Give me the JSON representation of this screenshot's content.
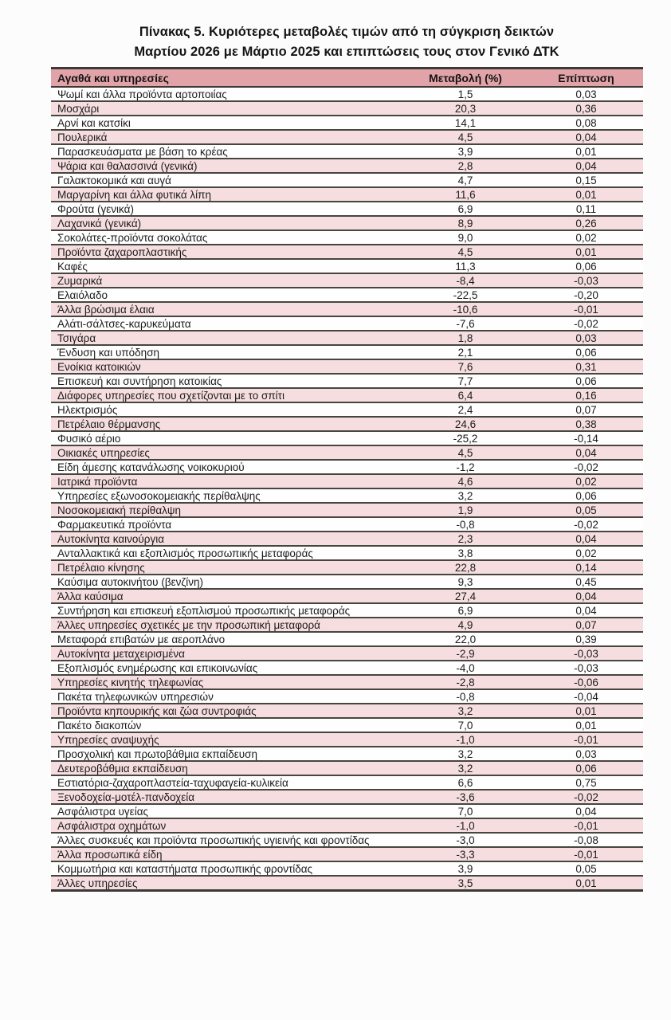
{
  "title": {
    "line1": "Πίνακας  5. Κυριότερες μεταβολές τιμών από τη σύγκριση δεικτών",
    "line2": "Μαρτίου 2026 με Μάρτιο 2025 και επιπτώσεις τους στον Γενικό ΔΤΚ"
  },
  "colors": {
    "header_bg": "#e1a3a8",
    "row_alt_bg": "#f6dee0",
    "border": "#474540"
  },
  "table": {
    "columns": [
      "Αγαθά και υπηρεσίες",
      "Μεταβολή  (%)",
      "Επίπτωση"
    ],
    "rows": [
      {
        "label": "Ψωμί και άλλα προϊόντα αρτοποιίας",
        "change": "1,5",
        "impact": "0,03"
      },
      {
        "label": "Μοσχάρι",
        "change": "20,3",
        "impact": "0,36"
      },
      {
        "label": "Αρνί και κατσίκι",
        "change": "14,1",
        "impact": "0,08"
      },
      {
        "label": "Πουλερικά",
        "change": "4,5",
        "impact": "0,04"
      },
      {
        "label": "Παρασκευάσματα με βάση το κρέας",
        "change": "3,9",
        "impact": "0,01"
      },
      {
        "label": "Ψάρια και θαλασσινά (γενικά)",
        "change": "2,8",
        "impact": "0,04"
      },
      {
        "label": "Γαλακτοκομικά και αυγά",
        "change": "4,7",
        "impact": "0,15"
      },
      {
        "label": "Μαργαρίνη και άλλα φυτικά λίπη",
        "change": "11,6",
        "impact": "0,01"
      },
      {
        "label": "Φρούτα (γενικά)",
        "change": "6,9",
        "impact": "0,11"
      },
      {
        "label": "Λαχανικά (γενικά)",
        "change": "8,9",
        "impact": "0,26"
      },
      {
        "label": "Σοκολάτες-προϊόντα σοκολάτας",
        "change": "9,0",
        "impact": "0,02"
      },
      {
        "label": "Προϊόντα ζαχαροπλαστικής",
        "change": "4,5",
        "impact": "0,01"
      },
      {
        "label": "Καφές",
        "change": "11,3",
        "impact": "0,06"
      },
      {
        "label": "Ζυμαρικά",
        "change": "-8,4",
        "impact": "-0,03"
      },
      {
        "label": "Ελαιόλαδο",
        "change": "-22,5",
        "impact": "-0,20"
      },
      {
        "label": "Άλλα βρώσιμα έλαια",
        "change": "-10,6",
        "impact": "-0,01"
      },
      {
        "label": "Αλάτι-σάλτσες-καρυκεύματα",
        "change": "-7,6",
        "impact": "-0,02"
      },
      {
        "label": "Τσιγάρα",
        "change": "1,8",
        "impact": "0,03"
      },
      {
        "label": "Ένδυση και υπόδηση",
        "change": "2,1",
        "impact": "0,06"
      },
      {
        "label": "Ενοίκια κατοικιών",
        "change": "7,6",
        "impact": "0,31"
      },
      {
        "label": "Επισκευή και συντήρηση κατοικίας",
        "change": "7,7",
        "impact": "0,06"
      },
      {
        "label": "Διάφορες υπηρεσίες που σχετίζονται με το σπίτι",
        "change": "6,4",
        "impact": "0,16"
      },
      {
        "label": "Ηλεκτρισμός",
        "change": "2,4",
        "impact": "0,07"
      },
      {
        "label": "Πετρέλαιο θέρμανσης",
        "change": "24,6",
        "impact": "0,38"
      },
      {
        "label": "Φυσικό αέριο",
        "change": "-25,2",
        "impact": "-0,14"
      },
      {
        "label": "Οικιακές υπηρεσίες",
        "change": "4,5",
        "impact": "0,04"
      },
      {
        "label": "Είδη άμεσης κατανάλωσης νοικοκυριού",
        "change": "-1,2",
        "impact": "-0,02"
      },
      {
        "label": "Ιατρικά προϊόντα",
        "change": "4,6",
        "impact": "0,02"
      },
      {
        "label": "Υπηρεσίες εξωνοσοκομειακής περίθαλψης",
        "change": "3,2",
        "impact": "0,06"
      },
      {
        "label": "Νοσοκομειακή περίθαλψη",
        "change": "1,9",
        "impact": "0,05"
      },
      {
        "label": "Φαρμακευτικά προϊόντα",
        "change": "-0,8",
        "impact": "-0,02"
      },
      {
        "label": "Αυτοκίνητα καινούργια",
        "change": "2,3",
        "impact": "0,04"
      },
      {
        "label": "Ανταλλακτικά και εξοπλισμός προσωπικής μεταφοράς",
        "change": "3,8",
        "impact": "0,02"
      },
      {
        "label": "Πετρέλαιο κίνησης",
        "change": "22,8",
        "impact": "0,14"
      },
      {
        "label": "Καύσιμα αυτοκινήτου (βενζίνη)",
        "change": "9,3",
        "impact": "0,45"
      },
      {
        "label": "Άλλα καύσιμα",
        "change": "27,4",
        "impact": "0,04"
      },
      {
        "label": "Συντήρηση και επισκευή εξοπλισμού προσωπικής μεταφοράς",
        "change": "6,9",
        "impact": "0,04"
      },
      {
        "label": "Άλλες υπηρεσίες σχετικές με την προσωπική μεταφορά",
        "change": "4,9",
        "impact": "0,07"
      },
      {
        "label": "Μεταφορά επιβατών με αεροπλάνο",
        "change": "22,0",
        "impact": "0,39"
      },
      {
        "label": "Αυτοκίνητα μεταχειρισμένα",
        "change": "-2,9",
        "impact": "-0,03"
      },
      {
        "label": "Εξοπλισμός ενημέρωσης και επικοινωνίας",
        "change": "-4,0",
        "impact": "-0,03"
      },
      {
        "label": "Υπηρεσίες κινητής τηλεφωνίας",
        "change": "-2,8",
        "impact": "-0,06"
      },
      {
        "label": "Πακέτα τηλεφωνικών υπηρεσιών",
        "change": "-0,8",
        "impact": "-0,04"
      },
      {
        "label": "Προϊόντα κηπουρικής και ζώα συντροφιάς",
        "change": "3,2",
        "impact": "0,01"
      },
      {
        "label": "Πακέτο διακοπών",
        "change": "7,0",
        "impact": "0,01"
      },
      {
        "label": "Υπηρεσίες αναψυχής",
        "change": "-1,0",
        "impact": "-0,01"
      },
      {
        "label": "Προσχολική και πρωτοβάθμια εκπαίδευση",
        "change": "3,2",
        "impact": "0,03"
      },
      {
        "label": "Δευτεροβάθμια εκπαίδευση",
        "change": "3,2",
        "impact": "0,06"
      },
      {
        "label": "Εστιατόρια-ζαχαροπλαστεία-ταχυφαγεία-κυλικεία",
        "change": "6,6",
        "impact": "0,75"
      },
      {
        "label": "Ξενοδοχεία-μοτέλ-πανδοχεία",
        "change": "-3,6",
        "impact": "-0,02"
      },
      {
        "label": "Ασφάλιστρα υγείας",
        "change": "7,0",
        "impact": "0,04"
      },
      {
        "label": "Ασφάλιστρα οχημάτων",
        "change": "-1,0",
        "impact": "-0,01"
      },
      {
        "label": "Άλλες συσκευές και προϊόντα προσωπικής υγιεινής και φροντίδας",
        "change": "-3,0",
        "impact": "-0,08"
      },
      {
        "label": "Άλλα προσωπικά είδη",
        "change": "-3,3",
        "impact": "-0,01"
      },
      {
        "label": "Κομμωτήρια και καταστήματα προσωπικής φροντίδας",
        "change": "3,9",
        "impact": "0,05"
      },
      {
        "label": "Άλλες υπηρεσίες",
        "change": "3,5",
        "impact": "0,01"
      }
    ]
  }
}
